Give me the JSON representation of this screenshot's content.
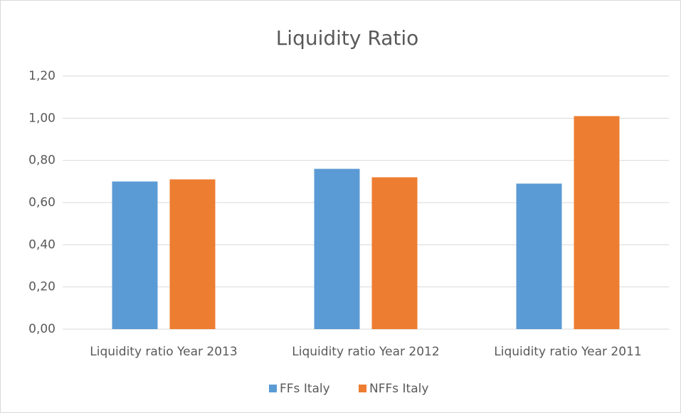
{
  "chart_data": {
    "type": "bar",
    "title": "Liquidity Ratio",
    "categories": [
      "Liquidity ratio Year 2013",
      "Liquidity ratio Year 2012",
      "Liquidity ratio Year 2011"
    ],
    "series": [
      {
        "name": "FFs Italy",
        "color": "#5b9bd5",
        "values": [
          0.7,
          0.76,
          0.69
        ]
      },
      {
        "name": "NFFs Italy",
        "color": "#ed7d31",
        "values": [
          0.71,
          0.72,
          1.01
        ]
      }
    ],
    "ylim": [
      0,
      1.2
    ],
    "yticks": [
      {
        "value": 0,
        "label": "0,00"
      },
      {
        "value": 0.2,
        "label": "0,20"
      },
      {
        "value": 0.4,
        "label": "0,40"
      },
      {
        "value": 0.6,
        "label": "0,60"
      },
      {
        "value": 0.8,
        "label": "0,80"
      },
      {
        "value": 1.0,
        "label": "1,00"
      },
      {
        "value": 1.2,
        "label": "1,20"
      }
    ],
    "grid": true,
    "legend": "bottom"
  }
}
